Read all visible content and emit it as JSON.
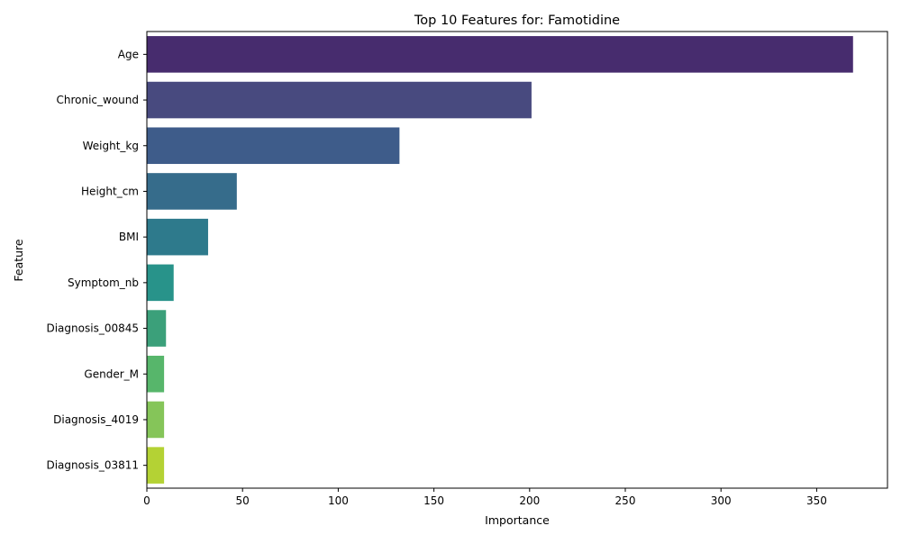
{
  "chart_data": {
    "type": "bar",
    "orientation": "horizontal",
    "title": "Top 10 Features for: Famotidine",
    "xlabel": "Importance",
    "ylabel": "Feature",
    "categories": [
      "Age",
      "Chronic_wound",
      "Weight_kg",
      "Height_cm",
      "BMI",
      "Symptom_nb",
      "Diagnosis_00845",
      "Gender_M",
      "Diagnosis_4019",
      "Diagnosis_03811"
    ],
    "values": [
      369,
      201,
      132,
      47,
      32,
      14,
      10,
      9,
      9,
      9
    ],
    "colors": [
      "#472c6e",
      "#484a7f",
      "#3e5c8a",
      "#366c8b",
      "#2e7a8c",
      "#28938a",
      "#3ba07a",
      "#57b66b",
      "#85c559",
      "#b4d234"
    ],
    "xlim": [
      0,
      387
    ],
    "xticks": [
      0,
      50,
      100,
      150,
      200,
      250,
      300,
      350
    ],
    "grid": false,
    "legend": "none"
  }
}
